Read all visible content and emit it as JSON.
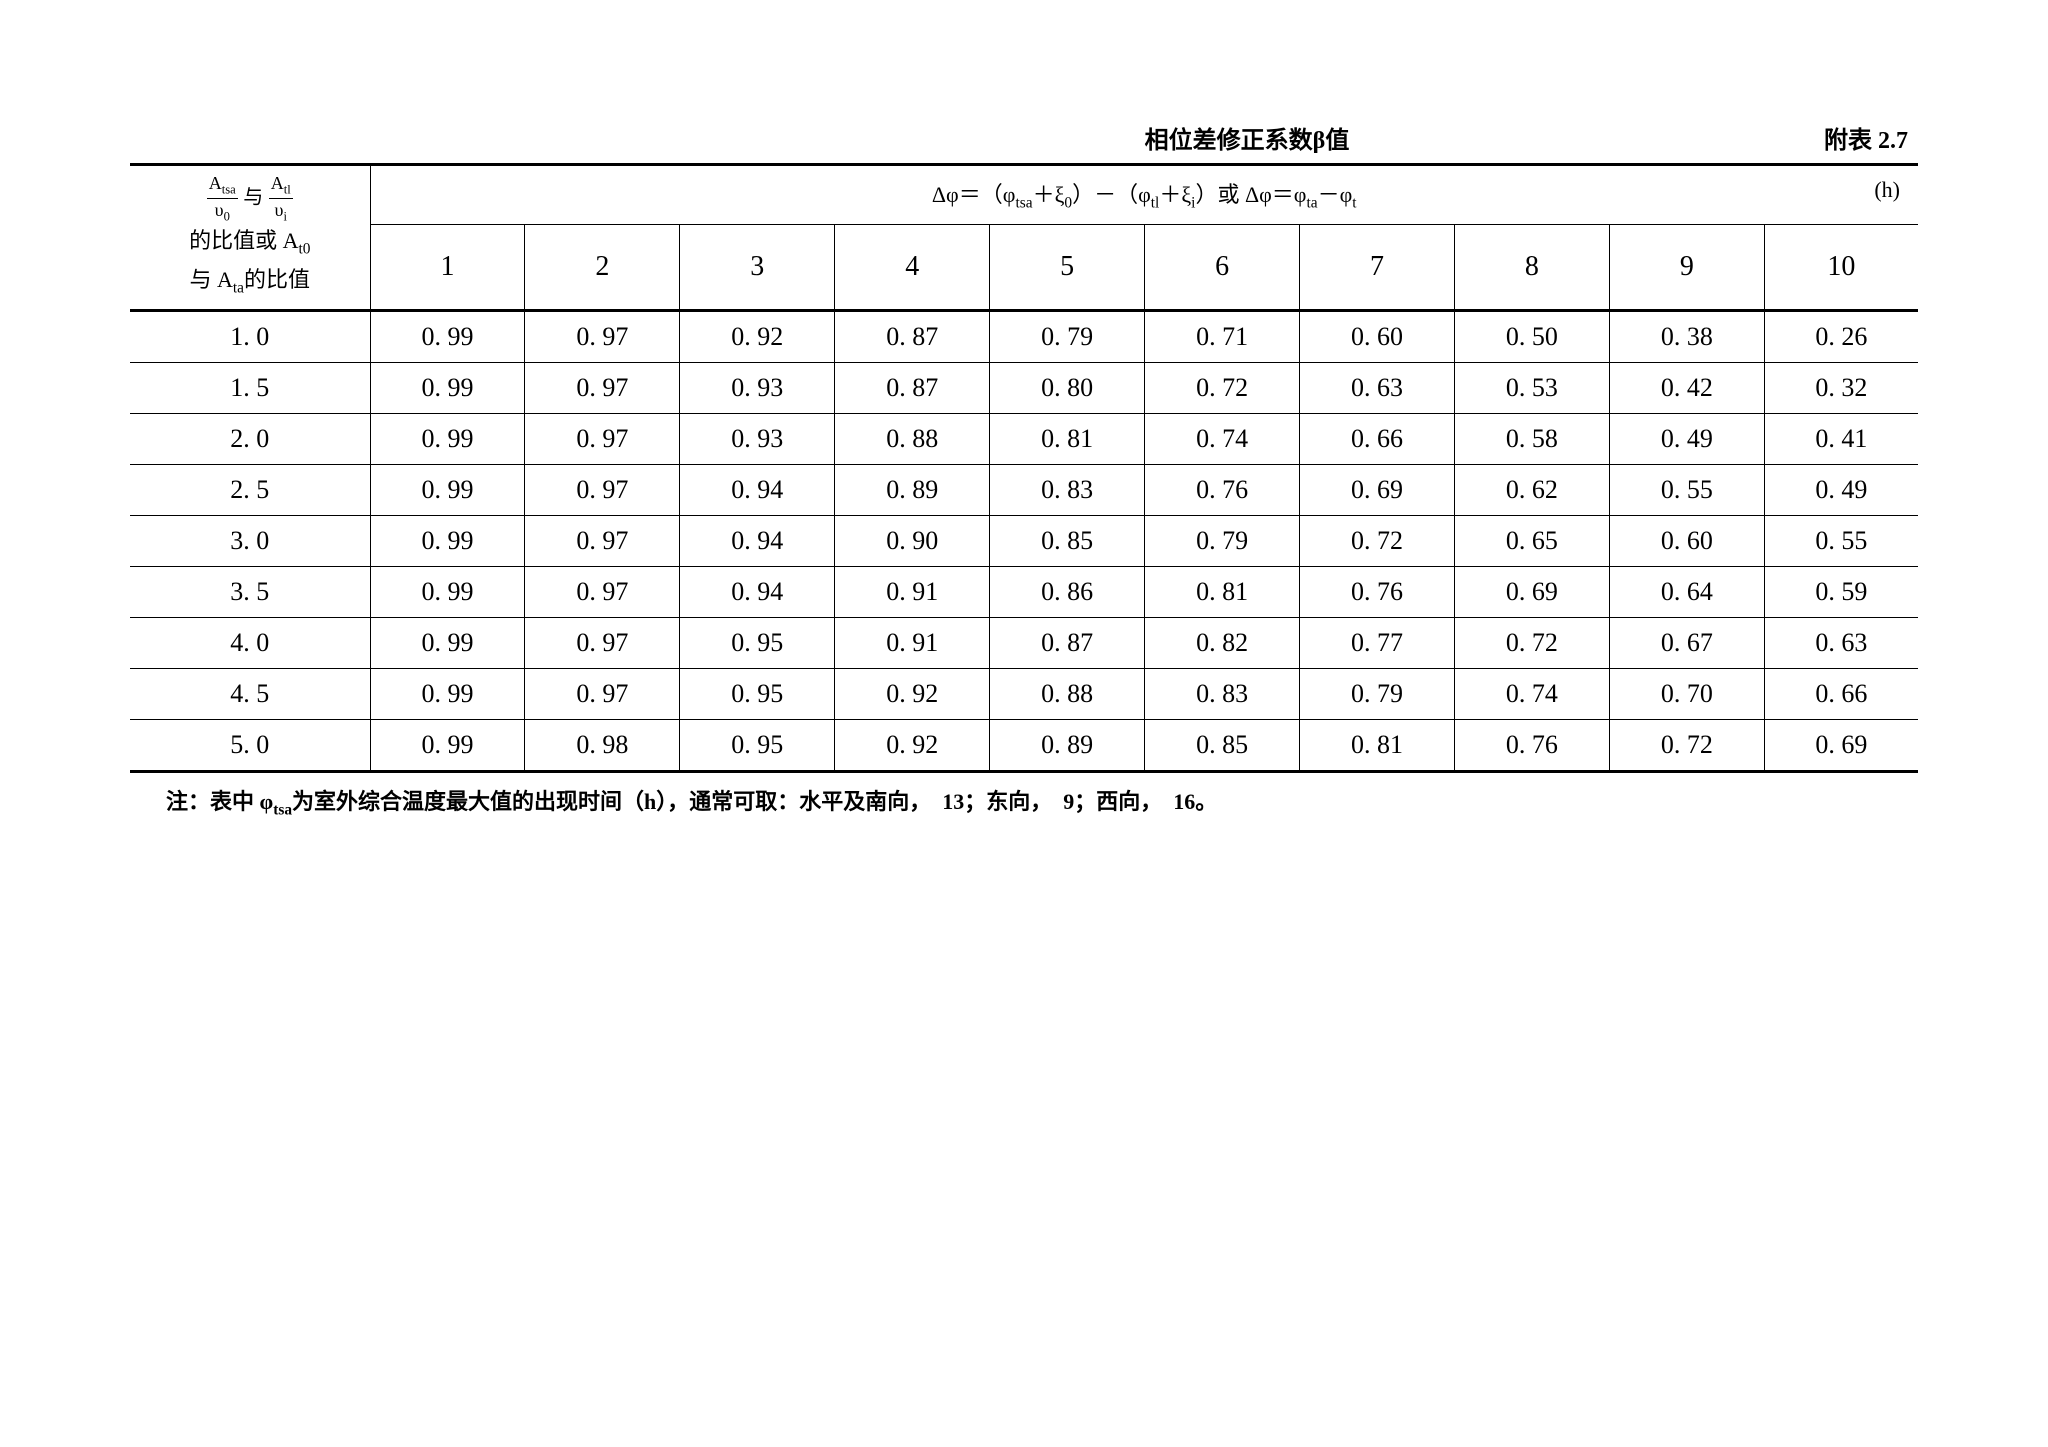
{
  "title": "相位差修正系数β值",
  "table_label": "附表 2.7",
  "row_header_line1_html": "frac1_and_frac2",
  "row_header_line2": "的比值或 A",
  "row_header_line2_sub": "t0",
  "row_header_line3": "与 A",
  "row_header_line3_sub": "ta",
  "row_header_line3_suffix": "的比值",
  "formula_header": "Δφ＝（φtsa＋ξ0）－（φtl＋ξi）或 Δφ＝φta－φt",
  "formula_unit": "(h)",
  "columns": [
    "1",
    "2",
    "3",
    "4",
    "5",
    "6",
    "7",
    "8",
    "9",
    "10"
  ],
  "row_labels": [
    "1. 0",
    "1. 5",
    "2. 0",
    "2. 5",
    "3. 0",
    "3. 5",
    "4. 0",
    "4. 5",
    "5. 0"
  ],
  "rows": [
    [
      "0. 99",
      "0. 97",
      "0. 92",
      "0. 87",
      "0. 79",
      "0. 71",
      "0. 60",
      "0. 50",
      "0. 38",
      "0. 26"
    ],
    [
      "0. 99",
      "0. 97",
      "0. 93",
      "0. 87",
      "0. 80",
      "0. 72",
      "0. 63",
      "0. 53",
      "0. 42",
      "0. 32"
    ],
    [
      "0. 99",
      "0. 97",
      "0. 93",
      "0. 88",
      "0. 81",
      "0. 74",
      "0. 66",
      "0. 58",
      "0. 49",
      "0. 41"
    ],
    [
      "0. 99",
      "0. 97",
      "0. 94",
      "0. 89",
      "0. 83",
      "0. 76",
      "0. 69",
      "0. 62",
      "0. 55",
      "0. 49"
    ],
    [
      "0. 99",
      "0. 97",
      "0. 94",
      "0. 90",
      "0. 85",
      "0. 79",
      "0. 72",
      "0. 65",
      "0. 60",
      "0. 55"
    ],
    [
      "0. 99",
      "0. 97",
      "0. 94",
      "0. 91",
      "0. 86",
      "0. 81",
      "0. 76",
      "0. 69",
      "0. 64",
      "0. 59"
    ],
    [
      "0. 99",
      "0. 97",
      "0. 95",
      "0. 91",
      "0. 87",
      "0. 82",
      "0. 77",
      "0. 72",
      "0. 67",
      "0. 63"
    ],
    [
      "0. 99",
      "0. 97",
      "0. 95",
      "0. 92",
      "0. 88",
      "0. 83",
      "0. 79",
      "0. 74",
      "0. 70",
      "0. 66"
    ],
    [
      "0. 99",
      "0. 98",
      "0. 95",
      "0. 92",
      "0. 89",
      "0. 85",
      "0. 81",
      "0. 76",
      "0. 72",
      "0. 69"
    ]
  ],
  "footnote": "注：表中 φtsa为室外综合温度最大值的出现时间（h），通常可取：水平及南向，　13；东向，　9；西向，　16。",
  "styling": {
    "background_color": "#ffffff",
    "border_color": "#000000",
    "outer_border_width": 3,
    "inner_border_width": 1,
    "title_fontsize": 24,
    "cell_fontsize": 26,
    "header_fontsize": 28,
    "footnote_fontsize": 22,
    "font_family": "SimSun"
  }
}
